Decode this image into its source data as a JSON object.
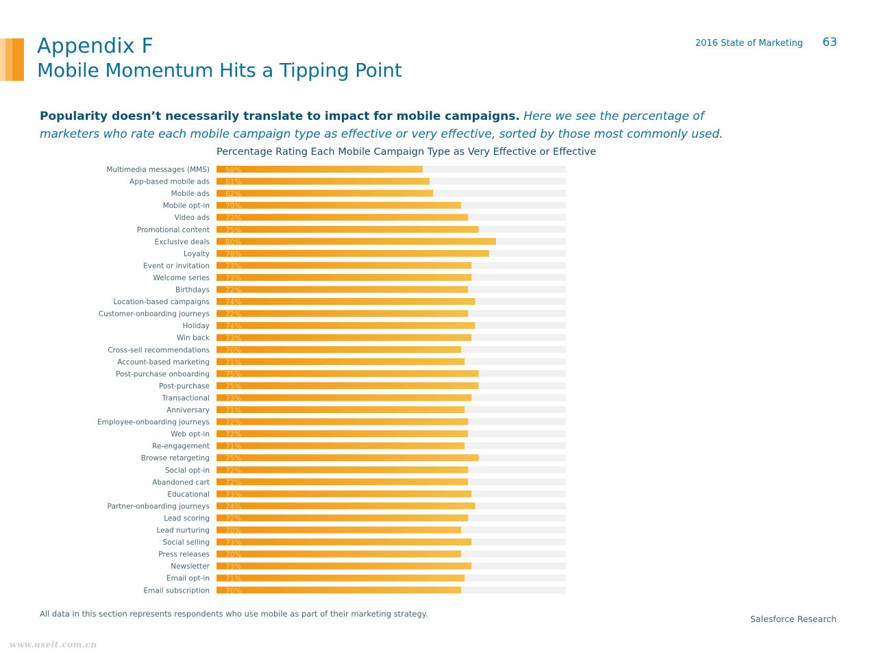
{
  "header": {
    "title": "Appendix F",
    "subtitle": "Mobile Momentum Hits a Tipping Point",
    "report_name": "2016 State of Marketing",
    "page_number": "63"
  },
  "intro": {
    "lead": "Popularity doesn’t necessarily translate to impact for mobile campaigns.",
    "rest": "Here we see the percentage of marketers who rate each mobile campaign type as effective or very effective, sorted by those most commonly used."
  },
  "colors": {
    "bar_start": "#ef9312",
    "bar_end": "#f4bf4b",
    "track": "#f1f1f2",
    "title_blue": "#0f6e93",
    "accent_orange": "#f39a1f"
  },
  "chart_data": {
    "type": "bar",
    "orientation": "horizontal",
    "title": "Percentage Rating Each Mobile Campaign Type as Very Effective or Effective",
    "xlim": [
      0,
      100
    ],
    "grid": false,
    "legend": "none",
    "categories": [
      "Multimedia messages (MMS)",
      "App-based mobile ads",
      "Mobile ads",
      "Mobile opt-in",
      "Video ads",
      "Promotional content",
      "Exclusive deals",
      "Loyalty",
      "Event or invitation",
      "Welcome series",
      "Birthdays",
      "Location-based campaigns",
      "Customer-onboarding journeys",
      "Holiday",
      "Win back",
      "Cross-sell recommendations",
      "Account-based marketing",
      "Post-purchase onboarding",
      "Post-purchase",
      "Transactional",
      "Anniversary",
      "Employee-onboarding journeys",
      "Web opt-in",
      "Re-engagement",
      "Browse retargeting",
      "Social opt-in",
      "Abandoned cart",
      "Educational",
      "Partner-onboarding journeys",
      "Lead scoring",
      "Lead nurturing",
      "Social selling",
      "Press releases",
      "Newsletter",
      "Email opt-in",
      "Email subscription"
    ],
    "values": [
      59,
      61,
      62,
      70,
      72,
      75,
      80,
      78,
      73,
      73,
      72,
      74,
      72,
      74,
      73,
      70,
      71,
      75,
      75,
      73,
      71,
      72,
      72,
      71,
      75,
      72,
      72,
      73,
      74,
      72,
      70,
      73,
      70,
      73,
      71,
      70
    ],
    "value_labels": [
      "59%",
      "61%",
      "62%",
      "70%",
      "72%",
      "75%",
      "80%",
      "78%",
      "73%",
      "73%",
      "72%",
      "74%",
      "72%",
      "74%",
      "73%",
      "70%",
      "71%",
      "75%",
      "75%",
      "73%",
      "71%",
      "72%",
      "72%",
      "71%",
      "75%",
      "72%",
      "72%",
      "73%",
      "74%",
      "72%",
      "70%",
      "73%",
      "70%",
      "73%",
      "71%",
      "70%"
    ]
  },
  "footer": {
    "note": "All data in this section represents respondents who use mobile as part of their marketing strategy.",
    "brand": "Salesforce Research",
    "watermark": "www.useit.com.cn"
  }
}
